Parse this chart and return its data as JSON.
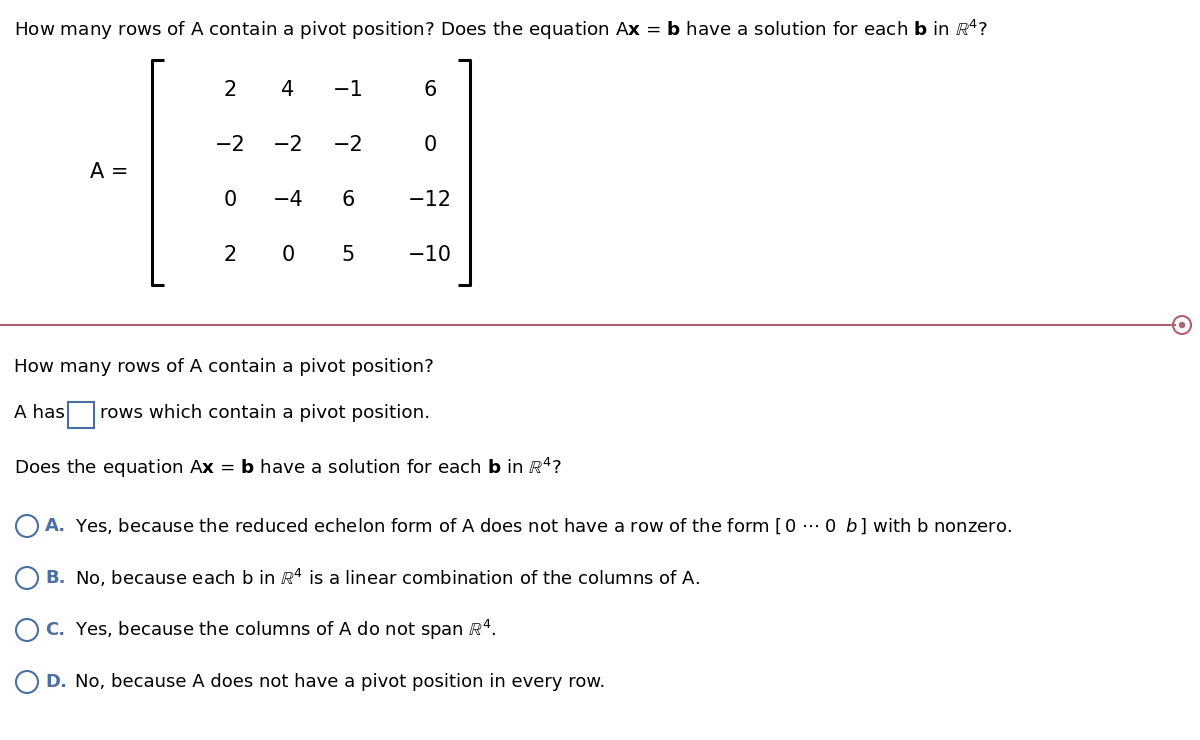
{
  "background_color": "#ffffff",
  "matrix": [
    [
      "2",
      "4",
      "−1",
      "6"
    ],
    [
      "−2",
      "−2",
      "−2",
      "0"
    ],
    [
      "0",
      "−4",
      "6",
      "−12"
    ],
    [
      "2",
      "0",
      "5",
      "−10"
    ]
  ],
  "text_color": "#000000",
  "circle_color": "#4a6fa5",
  "box_color": "#4a6fa5",
  "divider_color": "#b06070",
  "fs_title": 13.2,
  "fs_text": 13.2,
  "fs_matrix": 15.0,
  "fs_option": 13.0
}
